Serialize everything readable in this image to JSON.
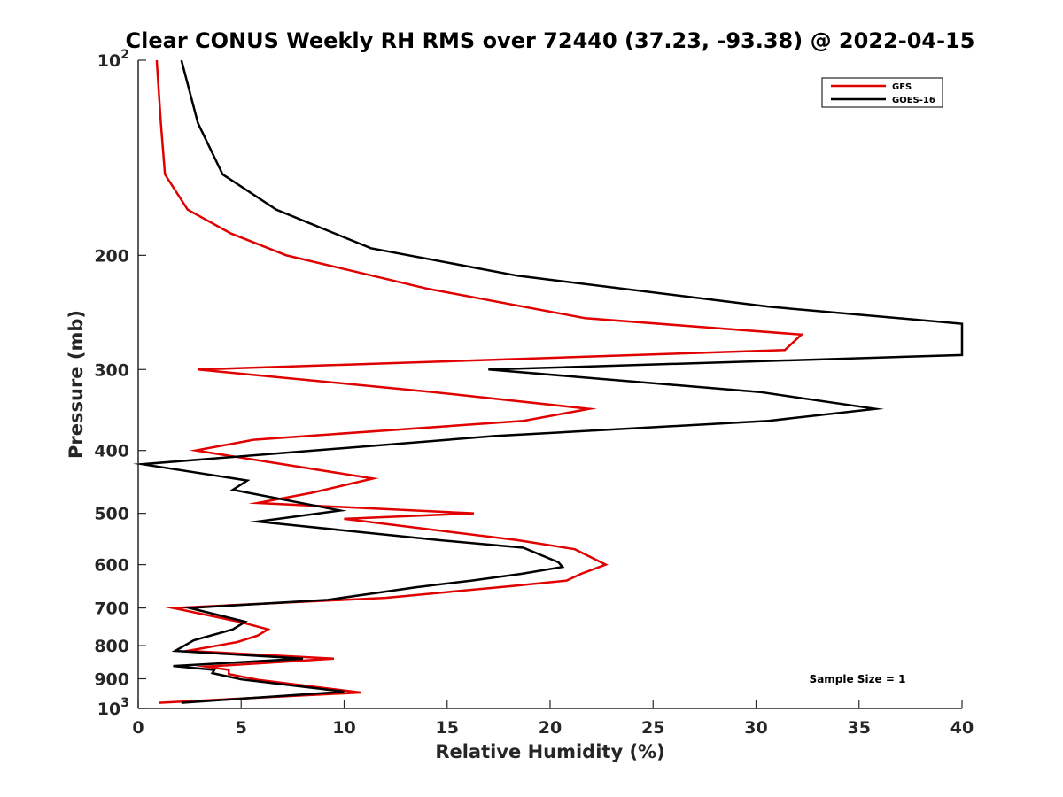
{
  "chart_data": {
    "type": "line",
    "title": "Clear CONUS Weekly RH RMS over 72440 (37.23, -93.38) @ 2022-04-15",
    "xlabel": "Relative Humidity (%)",
    "ylabel": "Pressure (mb)",
    "xlim": [
      0,
      40
    ],
    "ylim": [
      100,
      1000
    ],
    "yscale": "log",
    "y_reversed": true,
    "x_ticks": [
      "0",
      "5",
      "10",
      "15",
      "20",
      "25",
      "30",
      "35",
      "40"
    ],
    "y_ticks": [
      {
        "value": 100,
        "base": "10",
        "exp": "2"
      },
      {
        "value": 200,
        "label": "200"
      },
      {
        "value": 300,
        "label": "300"
      },
      {
        "value": 400,
        "label": "400"
      },
      {
        "value": 500,
        "label": "500"
      },
      {
        "value": 600,
        "label": "600"
      },
      {
        "value": 700,
        "label": "700"
      },
      {
        "value": 800,
        "label": "800"
      },
      {
        "value": 900,
        "label": "900"
      },
      {
        "value": 1000,
        "base": "10",
        "exp": "3"
      }
    ],
    "grid": false,
    "legend_position": "top-right",
    "annotation": "Sample Size = 1",
    "series": [
      {
        "name": "GFS",
        "color": "#e00000",
        "points": [
          [
            0.9,
            100
          ],
          [
            1.1,
            125
          ],
          [
            1.3,
            150
          ],
          [
            2.4,
            170
          ],
          [
            4.5,
            185
          ],
          [
            7.2,
            200
          ],
          [
            14,
            225
          ],
          [
            21.7,
            250
          ],
          [
            32.2,
            265
          ],
          [
            31.4,
            280
          ],
          [
            2.9,
            300
          ],
          [
            14.3,
            325
          ],
          [
            21.9,
            345
          ],
          [
            18.7,
            360
          ],
          [
            5.6,
            385
          ],
          [
            2.8,
            400
          ],
          [
            11.4,
            442
          ],
          [
            8.4,
            465
          ],
          [
            5.8,
            482
          ],
          [
            16.3,
            500
          ],
          [
            10,
            510
          ],
          [
            18.4,
            550
          ],
          [
            21.2,
            568
          ],
          [
            22.7,
            600
          ],
          [
            21.5,
            620
          ],
          [
            20.8,
            635
          ],
          [
            18,
            648
          ],
          [
            12,
            675
          ],
          [
            1.7,
            700
          ],
          [
            4.9,
            735
          ],
          [
            6.3,
            755
          ],
          [
            5.8,
            772
          ],
          [
            4.8,
            790
          ],
          [
            2.4,
            815
          ],
          [
            9.5,
            838
          ],
          [
            3.3,
            862
          ],
          [
            4.4,
            872
          ],
          [
            4.4,
            885
          ],
          [
            5.8,
            903
          ],
          [
            10.8,
            945
          ],
          [
            1.0,
            980
          ]
        ]
      },
      {
        "name": "GOES-16",
        "color": "#000000",
        "points": [
          [
            2.1,
            100
          ],
          [
            2.9,
            125
          ],
          [
            4.1,
            150
          ],
          [
            6.7,
            170
          ],
          [
            11.3,
            195
          ],
          [
            18.4,
            215
          ],
          [
            30.6,
            240
          ],
          [
            40,
            255
          ],
          [
            40,
            285
          ],
          [
            17,
            300
          ],
          [
            30.2,
            325
          ],
          [
            35.8,
            345
          ],
          [
            30.6,
            360
          ],
          [
            17.3,
            380
          ],
          [
            0.2,
            420
          ],
          [
            5.3,
            445
          ],
          [
            4.6,
            460
          ],
          [
            9.8,
            495
          ],
          [
            5.8,
            515
          ],
          [
            14.6,
            550
          ],
          [
            18.7,
            565
          ],
          [
            20.4,
            595
          ],
          [
            20.6,
            605
          ],
          [
            18.6,
            620
          ],
          [
            16.2,
            635
          ],
          [
            13.5,
            650
          ],
          [
            9.2,
            680
          ],
          [
            2.5,
            700
          ],
          [
            5.2,
            735
          ],
          [
            4.6,
            755
          ],
          [
            2.7,
            785
          ],
          [
            1.8,
            815
          ],
          [
            8,
            838
          ],
          [
            1.7,
            860
          ],
          [
            3.7,
            872
          ],
          [
            3.6,
            882
          ],
          [
            5,
            902
          ],
          [
            10,
            942
          ],
          [
            2.1,
            980
          ]
        ]
      }
    ]
  }
}
